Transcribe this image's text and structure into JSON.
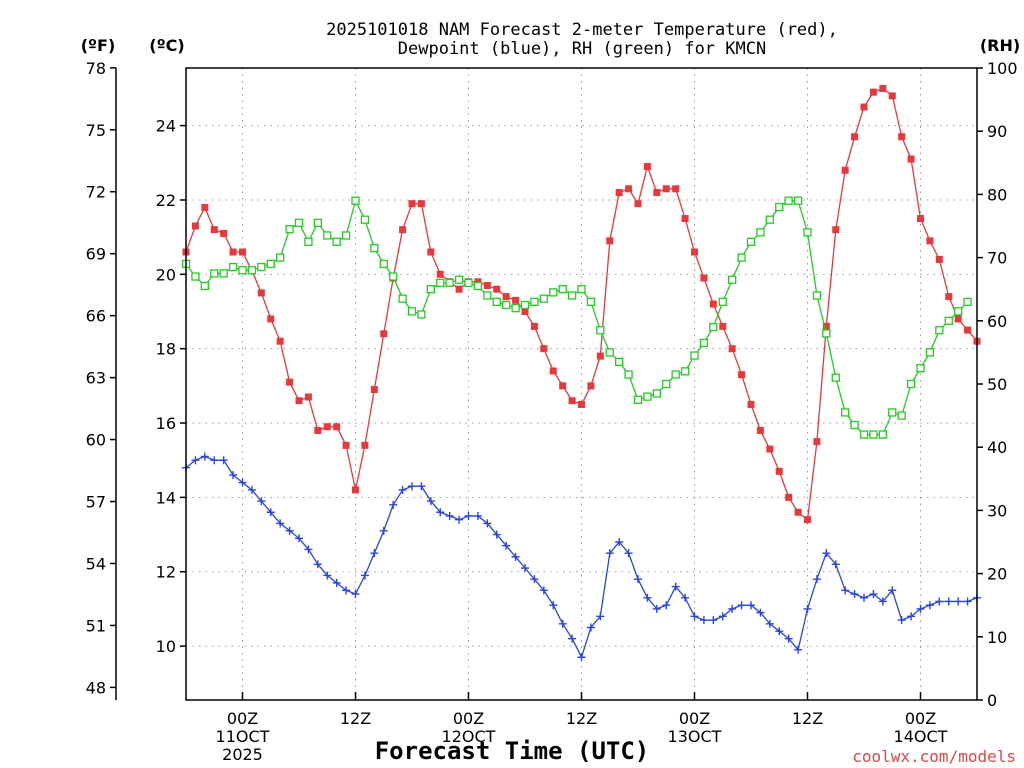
{
  "chart_data": {
    "type": "line",
    "title_line1": "2025101018 NAM Forecast 2-meter Temperature (red),",
    "title_line2": "Dewpoint (blue), RH (green) for KMCN",
    "xlabel": "Forecast Time (UTC)",
    "credit": "coolwx.com/models",
    "left_unit_f": "(ºF)",
    "left_unit_c": "(ºC)",
    "right_unit": "(RH)",
    "x_range_hours": [
      18,
      102
    ],
    "x_ticks": [
      {
        "hour": 24,
        "line1": "00Z",
        "line2": "11OCT",
        "line3": "2025"
      },
      {
        "hour": 36,
        "line1": "12Z",
        "line2": "",
        "line3": ""
      },
      {
        "hour": 48,
        "line1": "00Z",
        "line2": "12OCT",
        "line3": ""
      },
      {
        "hour": 60,
        "line1": "12Z",
        "line2": "",
        "line3": ""
      },
      {
        "hour": 72,
        "line1": "00Z",
        "line2": "13OCT",
        "line3": ""
      },
      {
        "hour": 84,
        "line1": "12Z",
        "line2": "",
        "line3": ""
      },
      {
        "hour": 96,
        "line1": "00Z",
        "line2": "14OCT",
        "line3": ""
      }
    ],
    "celsius_axis": {
      "range": [
        8.55,
        25.55
      ],
      "ticks": [
        "10",
        "12",
        "14",
        "16",
        "18",
        "20",
        "22",
        "24"
      ]
    },
    "fahrenheit_axis": {
      "ticks": [
        "48",
        "51",
        "54",
        "57",
        "60",
        "63",
        "66",
        "69",
        "72",
        "75",
        "78"
      ]
    },
    "rh_axis": {
      "range": [
        0,
        100
      ],
      "ticks": [
        "0",
        "10",
        "20",
        "30",
        "40",
        "50",
        "60",
        "70",
        "80",
        "90",
        "100"
      ]
    },
    "hours": [
      18,
      19,
      20,
      21,
      22,
      23,
      24,
      25,
      26,
      27,
      28,
      29,
      30,
      31,
      32,
      33,
      34,
      35,
      36,
      37,
      38,
      39,
      40,
      41,
      42,
      43,
      44,
      45,
      46,
      47,
      48,
      49,
      50,
      51,
      52,
      53,
      54,
      55,
      56,
      57,
      58,
      59,
      60,
      61,
      62,
      63,
      64,
      65,
      66,
      67,
      68,
      69,
      70,
      71,
      72,
      73,
      74,
      75,
      76,
      77,
      78,
      79,
      80,
      81,
      82,
      83,
      84,
      85,
      86,
      87,
      88,
      89,
      90,
      91,
      92,
      93,
      94,
      95,
      96,
      97,
      98,
      99,
      100,
      101,
      102
    ],
    "series": [
      {
        "name": "Temperature (red)",
        "unit": "C",
        "color": "#e8383c",
        "marker": "filled-square",
        "values": [
          20.6,
          21.3,
          21.8,
          21.2,
          21.1,
          20.6,
          20.6,
          20.1,
          19.5,
          18.8,
          18.2,
          17.1,
          16.6,
          16.7,
          15.8,
          15.9,
          15.9,
          15.4,
          14.2,
          15.4,
          16.9,
          18.4,
          19.9,
          21.2,
          21.9,
          21.9,
          20.6,
          20.0,
          19.8,
          19.6,
          19.8,
          19.8,
          19.7,
          19.6,
          19.4,
          19.3,
          19.0,
          18.6,
          18.0,
          17.4,
          17.0,
          16.6,
          16.5,
          17.0,
          17.8,
          20.9,
          22.2,
          22.3,
          21.9,
          22.9,
          22.2,
          22.3,
          22.3,
          21.5,
          20.6,
          19.9,
          19.2,
          18.6,
          18.0,
          17.3,
          16.5,
          15.8,
          15.3,
          14.7,
          14.0,
          13.6,
          13.4,
          15.5,
          18.6,
          21.2,
          22.8,
          23.7,
          24.5,
          24.9,
          25.0,
          24.8,
          23.7,
          23.1,
          21.5,
          20.9,
          20.4,
          19.4,
          18.8,
          18.5,
          18.2
        ]
      },
      {
        "name": "Dewpoint (blue)",
        "unit": "C",
        "color": "#2a44e0",
        "marker": "plus",
        "values": [
          14.8,
          15.0,
          15.1,
          15.0,
          15.0,
          14.6,
          14.4,
          14.2,
          13.9,
          13.6,
          13.3,
          13.1,
          12.9,
          12.6,
          12.2,
          11.9,
          11.7,
          11.5,
          11.4,
          11.9,
          12.5,
          13.1,
          13.8,
          14.2,
          14.3,
          14.3,
          13.9,
          13.6,
          13.5,
          13.4,
          13.5,
          13.5,
          13.3,
          13.0,
          12.7,
          12.4,
          12.1,
          11.8,
          11.5,
          11.1,
          10.6,
          10.2,
          9.7,
          10.5,
          10.8,
          12.5,
          12.8,
          12.5,
          11.8,
          11.3,
          11.0,
          11.1,
          11.6,
          11.3,
          10.8,
          10.7,
          10.7,
          10.8,
          11.0,
          11.1,
          11.1,
          10.9,
          10.6,
          10.4,
          10.2,
          9.9,
          11.0,
          11.8,
          12.5,
          12.2,
          11.5,
          11.4,
          11.3,
          11.4,
          11.2,
          11.5,
          10.7,
          10.8,
          11.0,
          11.1,
          11.2,
          11.2,
          11.2,
          11.2,
          11.3
        ]
      },
      {
        "name": "RH (green)",
        "unit": "%",
        "color": "#22cc22",
        "marker": "open-square",
        "values": [
          69,
          67,
          65.5,
          67.5,
          67.5,
          68.5,
          68,
          68,
          68.5,
          69,
          70,
          74.5,
          75.5,
          72.5,
          75.5,
          73.5,
          72.5,
          73.5,
          79,
          76,
          71.5,
          69,
          67,
          63.5,
          61.5,
          61,
          65,
          66,
          66,
          66.5,
          66,
          65.5,
          64,
          63,
          62.5,
          62,
          62.5,
          63,
          63.5,
          64.5,
          65,
          64,
          65,
          63,
          58.5,
          55,
          53.5,
          51.5,
          47.5,
          48,
          48.5,
          50,
          51.5,
          52,
          54.5,
          56.5,
          59,
          63,
          66.5,
          70,
          72.5,
          74,
          76,
          78,
          79,
          79,
          74,
          64,
          58,
          51,
          45.5,
          43.5,
          42,
          42,
          42,
          45.5,
          45,
          50,
          52.5,
          55,
          58.5,
          60,
          61.5,
          63
        ]
      }
    ]
  }
}
